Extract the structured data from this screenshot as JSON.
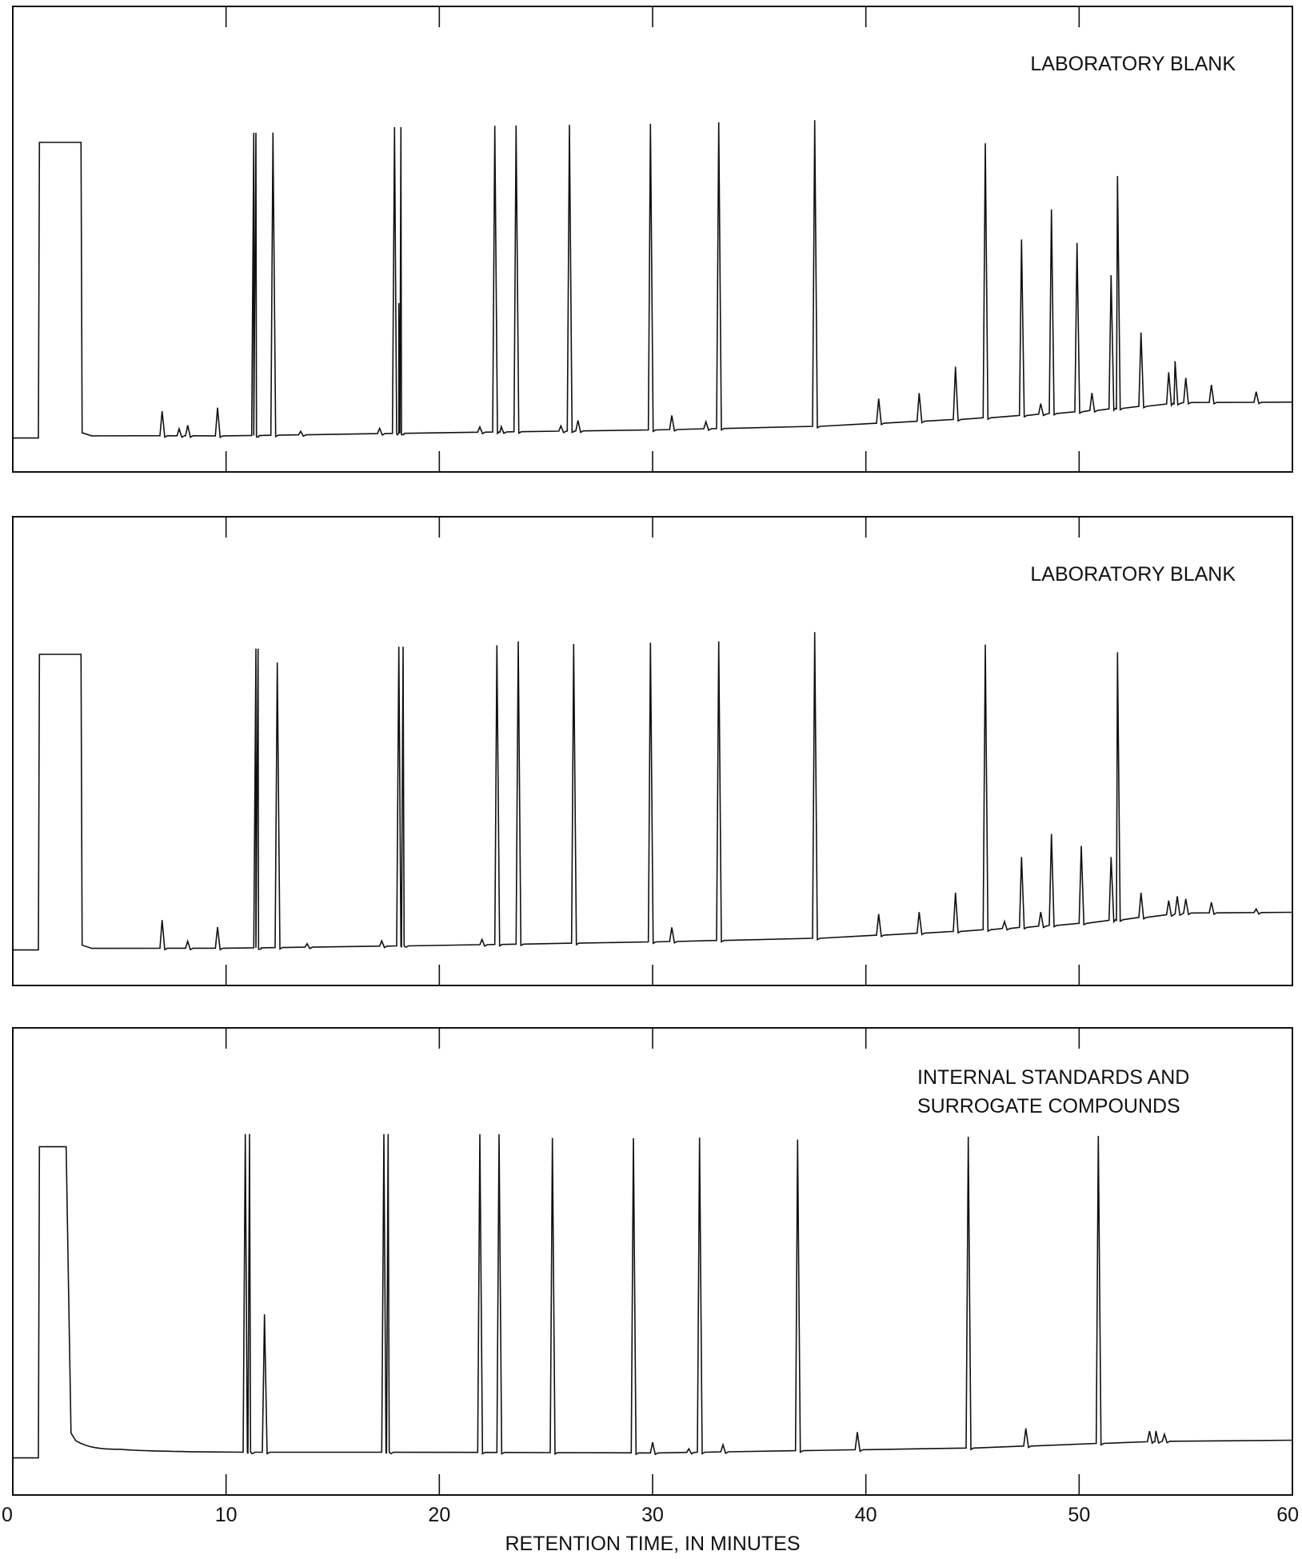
{
  "chart_data": {
    "type": "line",
    "xlabel": "RETENTION TIME, IN MINUTES",
    "xlim": [
      0,
      60
    ],
    "xticks": [
      "0",
      "10",
      "20",
      "30",
      "40",
      "50",
      "60"
    ],
    "panels": [
      {
        "label": [
          "LABORATORY BLANK"
        ],
        "baseline": [
          [
            0,
            1
          ],
          [
            1.2,
            1
          ],
          [
            4,
            1.7
          ],
          [
            10,
            1.6
          ],
          [
            20,
            2.5
          ],
          [
            30,
            3.3
          ],
          [
            37.5,
            4.3
          ],
          [
            45,
            6.5
          ],
          [
            50,
            8.5
          ],
          [
            55,
            11.1
          ],
          [
            60,
            11.2
          ]
        ],
        "solvent_front": {
          "start": 1.2,
          "end": 3.2,
          "height": 85
        },
        "peaks": [
          [
            7,
            7
          ],
          [
            7.8,
            2
          ],
          [
            8.2,
            3
          ],
          [
            9.6,
            8
          ],
          [
            11.3,
            86
          ],
          [
            11.4,
            86
          ],
          [
            12.2,
            86
          ],
          [
            13.5,
            1
          ],
          [
            17.2,
            1.5
          ],
          [
            17.9,
            87
          ],
          [
            18.1,
            37
          ],
          [
            18.2,
            87
          ],
          [
            21.9,
            1.5
          ],
          [
            22.6,
            87
          ],
          [
            22.9,
            1.5
          ],
          [
            23.6,
            87
          ],
          [
            25.7,
            1.5
          ],
          [
            26.1,
            87
          ],
          [
            26.5,
            3
          ],
          [
            29.9,
            87
          ],
          [
            30.9,
            4
          ],
          [
            32.5,
            2
          ],
          [
            33.1,
            87
          ],
          [
            37.6,
            87
          ],
          [
            40.6,
            7
          ],
          [
            42.5,
            8
          ],
          [
            44.2,
            15
          ],
          [
            45.6,
            78
          ],
          [
            47.3,
            50
          ],
          [
            48.2,
            3
          ],
          [
            48.7,
            58
          ],
          [
            49.9,
            48
          ],
          [
            50.6,
            5
          ],
          [
            51.5,
            38
          ],
          [
            51.8,
            66
          ],
          [
            52.9,
            21
          ],
          [
            54.2,
            9
          ],
          [
            54.5,
            12
          ],
          [
            55,
            7
          ],
          [
            56.2,
            5
          ],
          [
            58.3,
            3
          ]
        ]
      },
      {
        "label": [
          "LABORATORY BLANK"
        ],
        "baseline": [
          [
            0,
            1
          ],
          [
            1.2,
            1
          ],
          [
            4,
            1.5
          ],
          [
            10,
            1.5
          ],
          [
            20,
            2.3
          ],
          [
            30,
            3.3
          ],
          [
            37.5,
            4.3
          ],
          [
            45,
            6.5
          ],
          [
            50,
            8.5
          ],
          [
            55,
            11.5
          ],
          [
            60,
            11.7
          ]
        ],
        "solvent_front": {
          "start": 1.2,
          "end": 3.2,
          "height": 85
        },
        "peaks": [
          [
            7,
            8
          ],
          [
            8.2,
            2
          ],
          [
            9.6,
            6
          ],
          [
            11.4,
            85
          ],
          [
            11.5,
            85
          ],
          [
            12.4,
            81
          ],
          [
            13.8,
            1
          ],
          [
            17.3,
            1.5
          ],
          [
            18.1,
            85
          ],
          [
            18.3,
            85
          ],
          [
            22,
            1.5
          ],
          [
            22.7,
            85
          ],
          [
            23.7,
            86
          ],
          [
            26.3,
            85
          ],
          [
            29.9,
            85
          ],
          [
            30.9,
            4
          ],
          [
            33.1,
            85
          ],
          [
            37.6,
            87
          ],
          [
            40.6,
            6
          ],
          [
            42.5,
            6
          ],
          [
            44.2,
            11
          ],
          [
            45.6,
            81
          ],
          [
            46.5,
            2
          ],
          [
            47.3,
            20
          ],
          [
            48.2,
            4
          ],
          [
            48.7,
            26
          ],
          [
            50.1,
            22
          ],
          [
            51.5,
            18
          ],
          [
            51.8,
            76
          ],
          [
            52.9,
            7
          ],
          [
            54.2,
            4
          ],
          [
            54.6,
            5
          ],
          [
            55,
            4
          ],
          [
            56.2,
            3
          ],
          [
            58.3,
            1
          ]
        ]
      },
      {
        "label": [
          "INTERNAL STANDARDS AND",
          "SURROGATE COMPOUNDS"
        ],
        "baseline": [
          [
            0,
            1
          ],
          [
            1.2,
            1
          ],
          [
            5,
            3
          ],
          [
            10,
            2.6
          ],
          [
            20,
            2.6
          ],
          [
            30,
            2.4
          ],
          [
            37.5,
            3.1
          ],
          [
            45,
            3.8
          ],
          [
            50,
            4.9
          ],
          [
            55,
            5.9
          ],
          [
            60,
            6
          ]
        ],
        "solvent_front": {
          "start": 1.2,
          "end": 2.5,
          "height": 89,
          "decay_to": 8
        },
        "peaks": [
          [
            10.9,
            90
          ],
          [
            11.1,
            90
          ],
          [
            11.8,
            39
          ],
          [
            17.4,
            90
          ],
          [
            17.6,
            90
          ],
          [
            21.9,
            90
          ],
          [
            22.8,
            90
          ],
          [
            25.3,
            89
          ],
          [
            29.1,
            89
          ],
          [
            30,
            3
          ],
          [
            31.7,
            1
          ],
          [
            32.2,
            89
          ],
          [
            33.3,
            2
          ],
          [
            36.8,
            88
          ],
          [
            39.6,
            5
          ],
          [
            44.8,
            88
          ],
          [
            47.5,
            5
          ],
          [
            50.9,
            87
          ],
          [
            53.3,
            3
          ],
          [
            53.6,
            3
          ],
          [
            54,
            2
          ]
        ]
      }
    ]
  }
}
